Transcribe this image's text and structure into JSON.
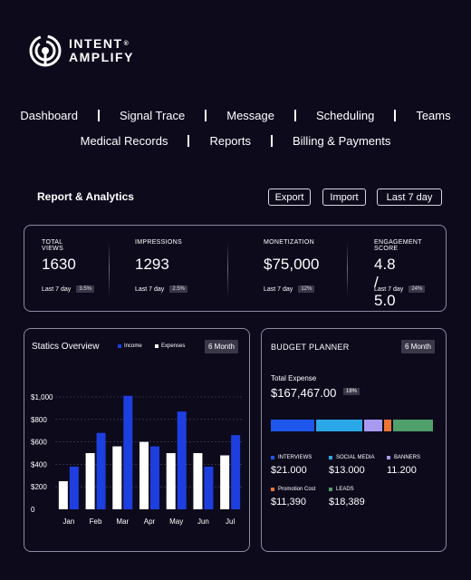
{
  "brand": {
    "line1": "INTENT",
    "reg": "®",
    "line2": "AMPLIFY"
  },
  "nav": {
    "row1": [
      "Dashboard",
      "Signal Trace",
      "Message",
      "Scheduling",
      "Teams"
    ],
    "row2": [
      "Medical Records",
      "Reports",
      "Billing & Payments"
    ]
  },
  "page": {
    "title": "Report & Analytics"
  },
  "actions": {
    "export": "Export",
    "import": "Import",
    "range": "Last 7 day"
  },
  "stats": [
    {
      "label": "TOTAL VIEWS",
      "value": "1630",
      "period": "Last 7 day",
      "change": "3.5%"
    },
    {
      "label": "IMPRESSIONS",
      "value": "1293",
      "period": "Last 7 day",
      "change": "2.5%"
    },
    {
      "label": "MONETIZATION",
      "value": "$75,000",
      "period": "Last 7 day",
      "change": "12%"
    },
    {
      "label": "ENGAGEMENT SCORE",
      "value": "4.8 / 5.0",
      "period": "Last 7 day",
      "change": "24%"
    }
  ],
  "statics": {
    "title": "Statics Overview",
    "legend_income": "Income",
    "legend_expenses": "Expenses",
    "period": "6 Month"
  },
  "chart_data": {
    "type": "bar",
    "categories": [
      "Jan",
      "Feb",
      "Mar",
      "Apr",
      "May",
      "Jun",
      "Jul"
    ],
    "yticks": [
      "0",
      "$200",
      "$400",
      "$600",
      "$800",
      "$1,000"
    ],
    "ylim": [
      0,
      1000
    ],
    "grid": true,
    "series": [
      {
        "name": "Expenses",
        "color": "#ffffff",
        "values": [
          250,
          500,
          560,
          600,
          500,
          500,
          480
        ]
      },
      {
        "name": "Income",
        "color": "#1d3fe0",
        "values": [
          380,
          680,
          1010,
          560,
          870,
          380,
          660
        ]
      }
    ]
  },
  "budget": {
    "title": "BUDGET PLANNER",
    "period": "6 Month",
    "total_label": "Total Expense",
    "total_value": "$167,467.00",
    "total_change": "18%",
    "segments": [
      {
        "label": "INTERVIEWS",
        "value": "$21.000",
        "color": "#1d57ec",
        "share": 0.28
      },
      {
        "label": "SOCIAL MEDIA",
        "value": "$13.000",
        "color": "#2ba8e8",
        "share": 0.29
      },
      {
        "label": "BANNERS",
        "value": "11.200",
        "color": "#a79af0",
        "share": 0.115
      },
      {
        "label": "Promotion Cost",
        "value": "$11,390",
        "color": "#ec7535",
        "share": 0.05
      },
      {
        "label": "LEADS",
        "value": "$18,389",
        "color": "#4fa06b",
        "share": 0.255
      }
    ]
  }
}
